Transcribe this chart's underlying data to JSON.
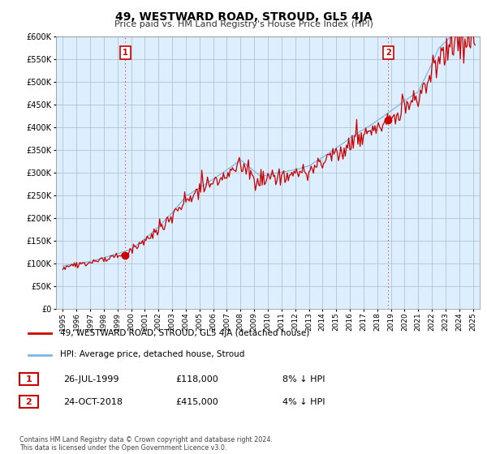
{
  "title": "49, WESTWARD ROAD, STROUD, GL5 4JA",
  "subtitle": "Price paid vs. HM Land Registry's House Price Index (HPI)",
  "hpi_label": "HPI: Average price, detached house, Stroud",
  "property_label": "49, WESTWARD ROAD, STROUD, GL5 4JA (detached house)",
  "footnote": "Contains HM Land Registry data © Crown copyright and database right 2024.\nThis data is licensed under the Open Government Licence v3.0.",
  "transaction1": {
    "label": "1",
    "date": "26-JUL-1999",
    "price": "£118,000",
    "hpi_diff": "8% ↓ HPI"
  },
  "transaction2": {
    "label": "2",
    "date": "24-OCT-2018",
    "price": "£415,000",
    "hpi_diff": "4% ↓ HPI"
  },
  "t1_x": 1999.57,
  "t1_y": 118000,
  "t2_x": 2018.81,
  "t2_y": 415000,
  "hpi_color": "#7ab8e8",
  "property_color": "#cc0000",
  "marker_color": "#cc0000",
  "chart_bg": "#ddeeff",
  "background_color": "#ffffff",
  "grid_color": "#aabbcc",
  "ylim": [
    0,
    590000
  ],
  "xlim": [
    1994.5,
    2025.5
  ],
  "yticks": [
    0,
    50000,
    100000,
    150000,
    200000,
    250000,
    300000,
    350000,
    400000,
    450000,
    500000,
    550000,
    600000
  ],
  "xticks": [
    1995,
    1996,
    1997,
    1998,
    1999,
    2000,
    2001,
    2002,
    2003,
    2004,
    2005,
    2006,
    2007,
    2008,
    2009,
    2010,
    2011,
    2012,
    2013,
    2014,
    2015,
    2016,
    2017,
    2018,
    2019,
    2020,
    2021,
    2022,
    2023,
    2024,
    2025
  ]
}
